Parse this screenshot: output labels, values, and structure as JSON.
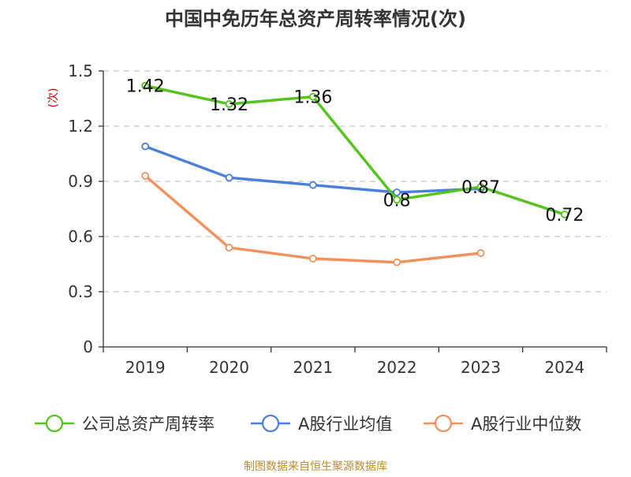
{
  "chart_data": {
    "type": "line",
    "title": "中国中免历年总资产周转率情况(次)",
    "ylabel": "(次)",
    "xlabel": "",
    "categories": [
      "2019",
      "2020",
      "2021",
      "2022",
      "2023",
      "2024"
    ],
    "ylim": [
      0,
      1.5
    ],
    "yticks": [
      0,
      0.3,
      0.6,
      0.9,
      1.2,
      1.5
    ],
    "ytick_labels": [
      "0",
      "0.3",
      "0.6",
      "0.9",
      "1.2",
      "1.5"
    ],
    "grid": true,
    "legend_position": "bottom",
    "series": [
      {
        "name": "公司总资产周转率",
        "color": "#52c41a",
        "values": [
          1.42,
          1.32,
          1.36,
          0.8,
          0.87,
          0.72
        ],
        "labels": [
          "1.42",
          "1.32",
          "1.36",
          "0.8",
          "0.87",
          "0.72"
        ]
      },
      {
        "name": "A股行业均值",
        "color": "#4a7fdc",
        "values": [
          1.09,
          0.92,
          0.88,
          0.84,
          0.86,
          null
        ]
      },
      {
        "name": "A股行业中位数",
        "color": "#f58f5a",
        "values": [
          0.93,
          0.54,
          0.48,
          0.46,
          0.51,
          null
        ]
      }
    ]
  },
  "source": "制图数据来自恒生聚源数据库"
}
